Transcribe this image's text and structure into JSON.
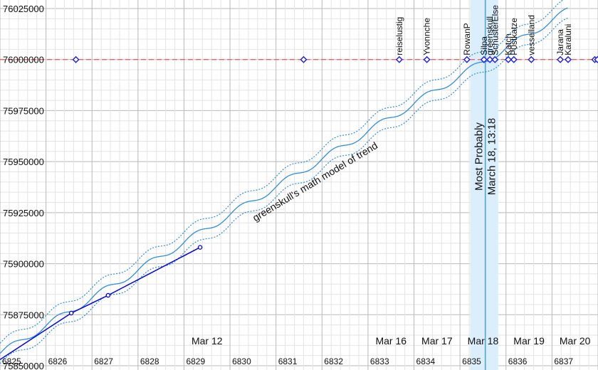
{
  "chart_data": {
    "type": "line",
    "title": "",
    "xlabel": "",
    "ylabel": "",
    "xlim": [
      6825.0,
      6838.0
    ],
    "ylim": [
      75850000,
      76025000
    ],
    "y_ticks": [
      75850000,
      75875000,
      75900000,
      75925000,
      75950000,
      75975000,
      76000000,
      76025000
    ],
    "x_ticks": [
      6825,
      6826,
      6827,
      6828,
      6829,
      6830,
      6831,
      6832,
      6833,
      6834,
      6835,
      6836,
      6837
    ],
    "x_tick_labels": [
      "6825",
      "6826",
      "6827",
      "6828",
      "6829",
      "6830",
      "6831",
      "6832",
      "6833",
      "6834",
      "6835",
      "6836",
      "6837"
    ],
    "date_labels": [
      {
        "label": "Mar 12",
        "x": 6829.5
      },
      {
        "label": "Mar 16",
        "x": 6833.5
      },
      {
        "label": "Mar 17",
        "x": 6834.5
      },
      {
        "label": "Mar 18",
        "x": 6835.5
      },
      {
        "label": "Mar 19",
        "x": 6836.5
      },
      {
        "label": "Mar 20",
        "x": 6837.5
      }
    ],
    "grid": true,
    "goal_line": {
      "y": 76000000,
      "color": "#ff3333"
    },
    "model": {
      "label": "greenskull's math model of trend",
      "color": "#2f8fe0",
      "x_start": 6825.0,
      "x_end": 6837.35,
      "start_y": 75856000,
      "end_y": 76024000,
      "wave_amplitude": 1700,
      "wave_period": 1.0,
      "band_width": 5000
    },
    "observed": {
      "color": "#0000ee",
      "points": [
        {
          "x": 6825.0,
          "y": 75853000
        },
        {
          "x": 6826.55,
          "y": 75875800
        },
        {
          "x": 6827.35,
          "y": 75884500
        },
        {
          "x": 6829.35,
          "y": 75908000
        }
      ]
    },
    "predictions": {
      "y": 76000000,
      "color": "#1a1aee",
      "points": [
        {
          "x": 6826.65,
          "name": ""
        },
        {
          "x": 6831.6,
          "name": ""
        },
        {
          "x": 6833.68,
          "name": "reiselustig"
        },
        {
          "x": 6834.28,
          "name": "Yvonnche"
        },
        {
          "x": 6835.15,
          "name": "RowanP"
        },
        {
          "x": 6835.52,
          "name": "Silpa"
        },
        {
          "x": 6835.65,
          "name": "greenskull"
        },
        {
          "x": 6835.76,
          "name": "SchusterElse"
        },
        {
          "x": 6836.05,
          "name": "Katch"
        },
        {
          "x": 6836.17,
          "name": "P0stkatze"
        },
        {
          "x": 6836.55,
          "name": "vesselland"
        },
        {
          "x": 6837.18,
          "name": "Jarana"
        },
        {
          "x": 6837.35,
          "name": "Karaluni"
        },
        {
          "x": 6837.93,
          "name": ""
        },
        {
          "x": 6837.99,
          "name": ""
        }
      ]
    },
    "most_probable": {
      "line1": "Most Probably",
      "line2": "March 18, 13:18",
      "x": 6835.55,
      "band": [
        6835.22,
        6835.83
      ],
      "color": "#4a9fe0",
      "band_color": "#dbeefb"
    }
  }
}
